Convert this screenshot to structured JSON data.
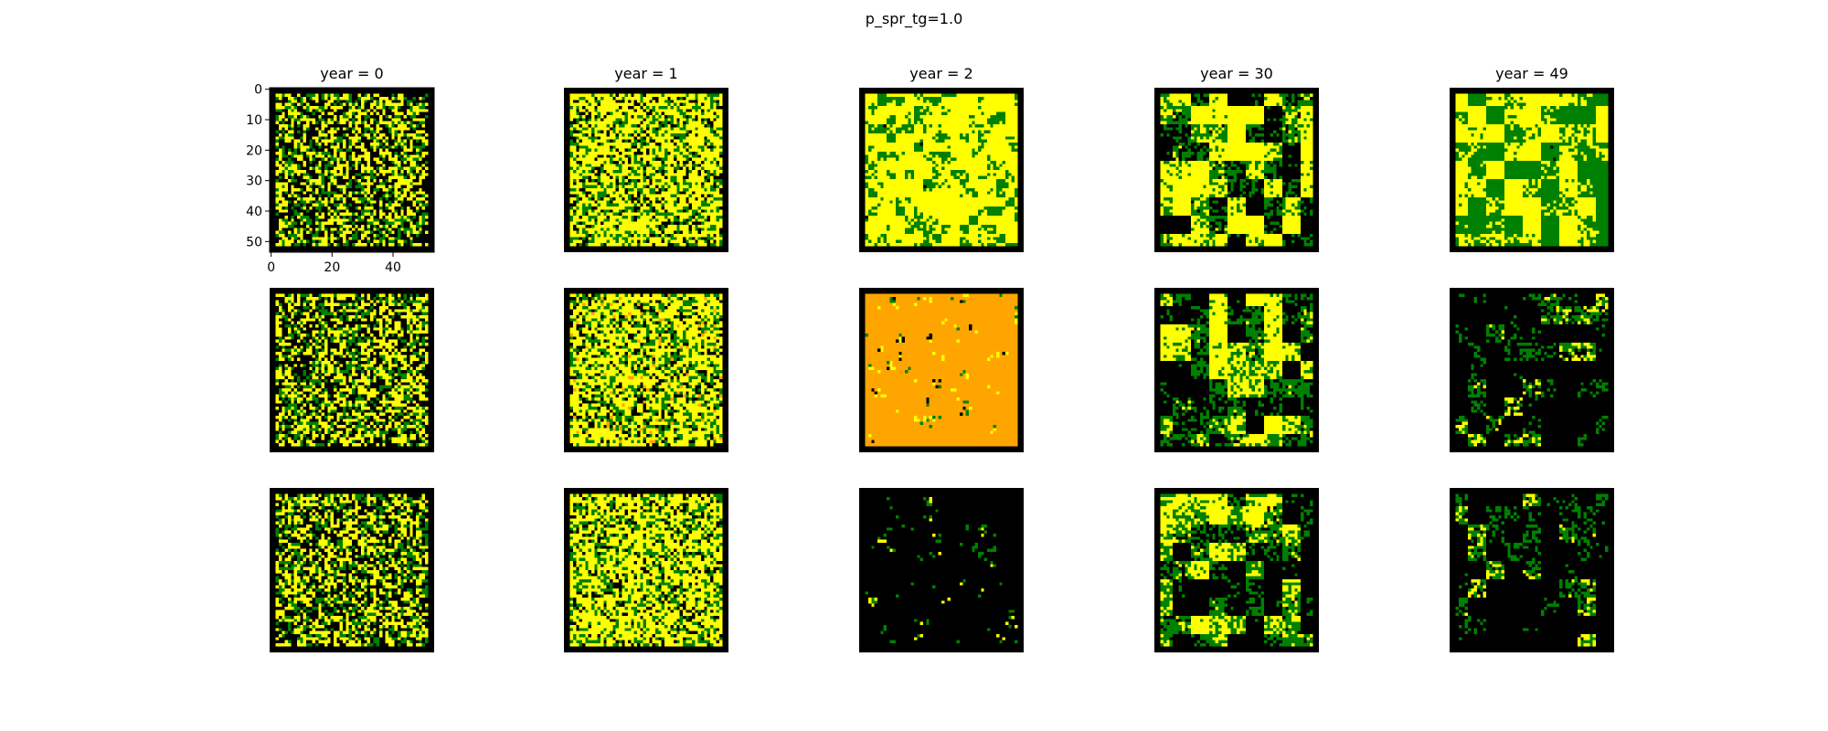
{
  "figure": {
    "title": "p_spr_tg=1.0"
  },
  "chart_data": {
    "type": "heatmap",
    "title": "p_spr_tg=1.0",
    "grid": false,
    "rows": 3,
    "cols": 5,
    "grid_size": 54,
    "xlim": [
      -0.5,
      53.5
    ],
    "ylim": [
      53.5,
      -0.5
    ],
    "x_ticks": [
      0,
      20,
      40
    ],
    "y_ticks": [
      0,
      10,
      20,
      30,
      40,
      50
    ],
    "colors": {
      "empty": "#000000",
      "grass": "#008000",
      "tree": "#ffff00",
      "burning": "#ffa500"
    },
    "columns": [
      {
        "label": "year = 0",
        "year": 0
      },
      {
        "label": "year = 1",
        "year": 1
      },
      {
        "label": "year = 2",
        "year": 2
      },
      {
        "label": "year = 30",
        "year": 30
      },
      {
        "label": "year = 49",
        "year": 49
      }
    ],
    "panels": [
      [
        {
          "black": 0.4,
          "green": 0.22,
          "yellow": 0.38,
          "orange": 0.0
        },
        {
          "black": 0.15,
          "green": 0.25,
          "yellow": 0.6,
          "orange": 0.0
        },
        {
          "black": 0.03,
          "green": 0.32,
          "yellow": 0.65,
          "orange": 0.0
        },
        {
          "black": 0.4,
          "green": 0.2,
          "yellow": 0.4,
          "orange": 0.0
        },
        {
          "black": 0.03,
          "green": 0.42,
          "yellow": 0.55,
          "orange": 0.0
        }
      ],
      [
        {
          "black": 0.4,
          "green": 0.22,
          "yellow": 0.38,
          "orange": 0.0
        },
        {
          "black": 0.15,
          "green": 0.25,
          "yellow": 0.57,
          "orange": 0.03
        },
        {
          "black": 0.08,
          "green": 0.03,
          "yellow": 0.04,
          "orange": 0.85
        },
        {
          "black": 0.45,
          "green": 0.2,
          "yellow": 0.35,
          "orange": 0.0
        },
        {
          "black": 0.68,
          "green": 0.15,
          "yellow": 0.16,
          "orange": 0.01
        }
      ],
      [
        {
          "black": 0.4,
          "green": 0.22,
          "yellow": 0.38,
          "orange": 0.0
        },
        {
          "black": 0.15,
          "green": 0.25,
          "yellow": 0.6,
          "orange": 0.0
        },
        {
          "black": 0.85,
          "green": 0.07,
          "yellow": 0.08,
          "orange": 0.0
        },
        {
          "black": 0.45,
          "green": 0.2,
          "yellow": 0.35,
          "orange": 0.0
        },
        {
          "black": 0.68,
          "green": 0.16,
          "yellow": 0.16,
          "orange": 0.0
        }
      ]
    ]
  }
}
